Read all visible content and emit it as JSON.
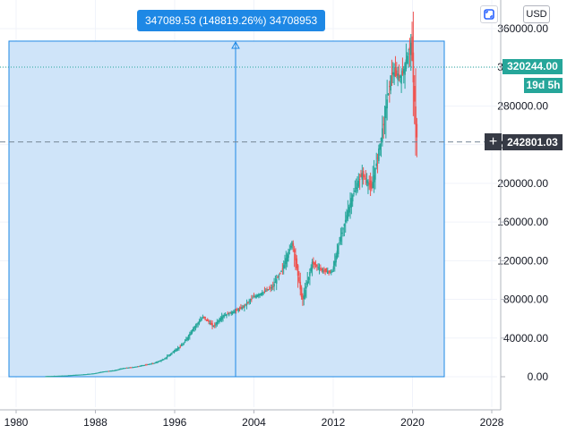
{
  "measure": {
    "label": "347089.53 (148819.26%) 34708953",
    "fill": "#cfe4f9",
    "border": "#1e88e5"
  },
  "price_scale": {
    "currency": "USD",
    "last_price": "320244.00",
    "countdown": "19d 5h",
    "crosshair_price": "242801.03",
    "accent_up": "#26a69a",
    "accent_down": "#ef5350",
    "tag_dark": "#363a45"
  },
  "icons": {
    "fit": "fit-screen-icon",
    "plus": "plus-icon"
  },
  "chart_data": {
    "type": "candlestick",
    "y_ticks": [
      "360000.00",
      "320000.00",
      "280000.00",
      "240000.00",
      "200000.00",
      "160000.00",
      "120000.00",
      "80000.00",
      "40000.00",
      "0.00"
    ],
    "x_ticks": [
      "1980",
      "1988",
      "1996",
      "2004",
      "2012",
      "2020",
      "2028"
    ],
    "ylim": [
      0,
      360000
    ],
    "xlim": [
      1980,
      2028
    ],
    "grid": true,
    "measure_range": {
      "x_start": 1980,
      "x_end": 2023.5,
      "y_start": 0,
      "y_end": 347090
    },
    "last_price": 320244,
    "crosshair_price": 242801,
    "x": [
      1983,
      1985,
      1987,
      1988,
      1989,
      1990,
      1991,
      1992,
      1993,
      1994,
      1995,
      1996,
      1997,
      1998,
      1999,
      2000,
      2001,
      2002,
      2003,
      2004,
      2005,
      2006,
      2007,
      2008,
      2009,
      2010,
      2011,
      2012,
      2013,
      2014,
      2015,
      2016,
      2017,
      2018,
      2019,
      2020,
      2020.5
    ],
    "values": [
      500,
      1200,
      2500,
      3500,
      5500,
      6500,
      9000,
      10000,
      12000,
      14000,
      18000,
      26000,
      34000,
      50000,
      62000,
      52000,
      63000,
      67000,
      72000,
      82000,
      87000,
      93000,
      112000,
      140000,
      78000,
      118000,
      110000,
      108000,
      150000,
      185000,
      210000,
      195000,
      250000,
      315000,
      310000,
      345000,
      248000
    ]
  }
}
